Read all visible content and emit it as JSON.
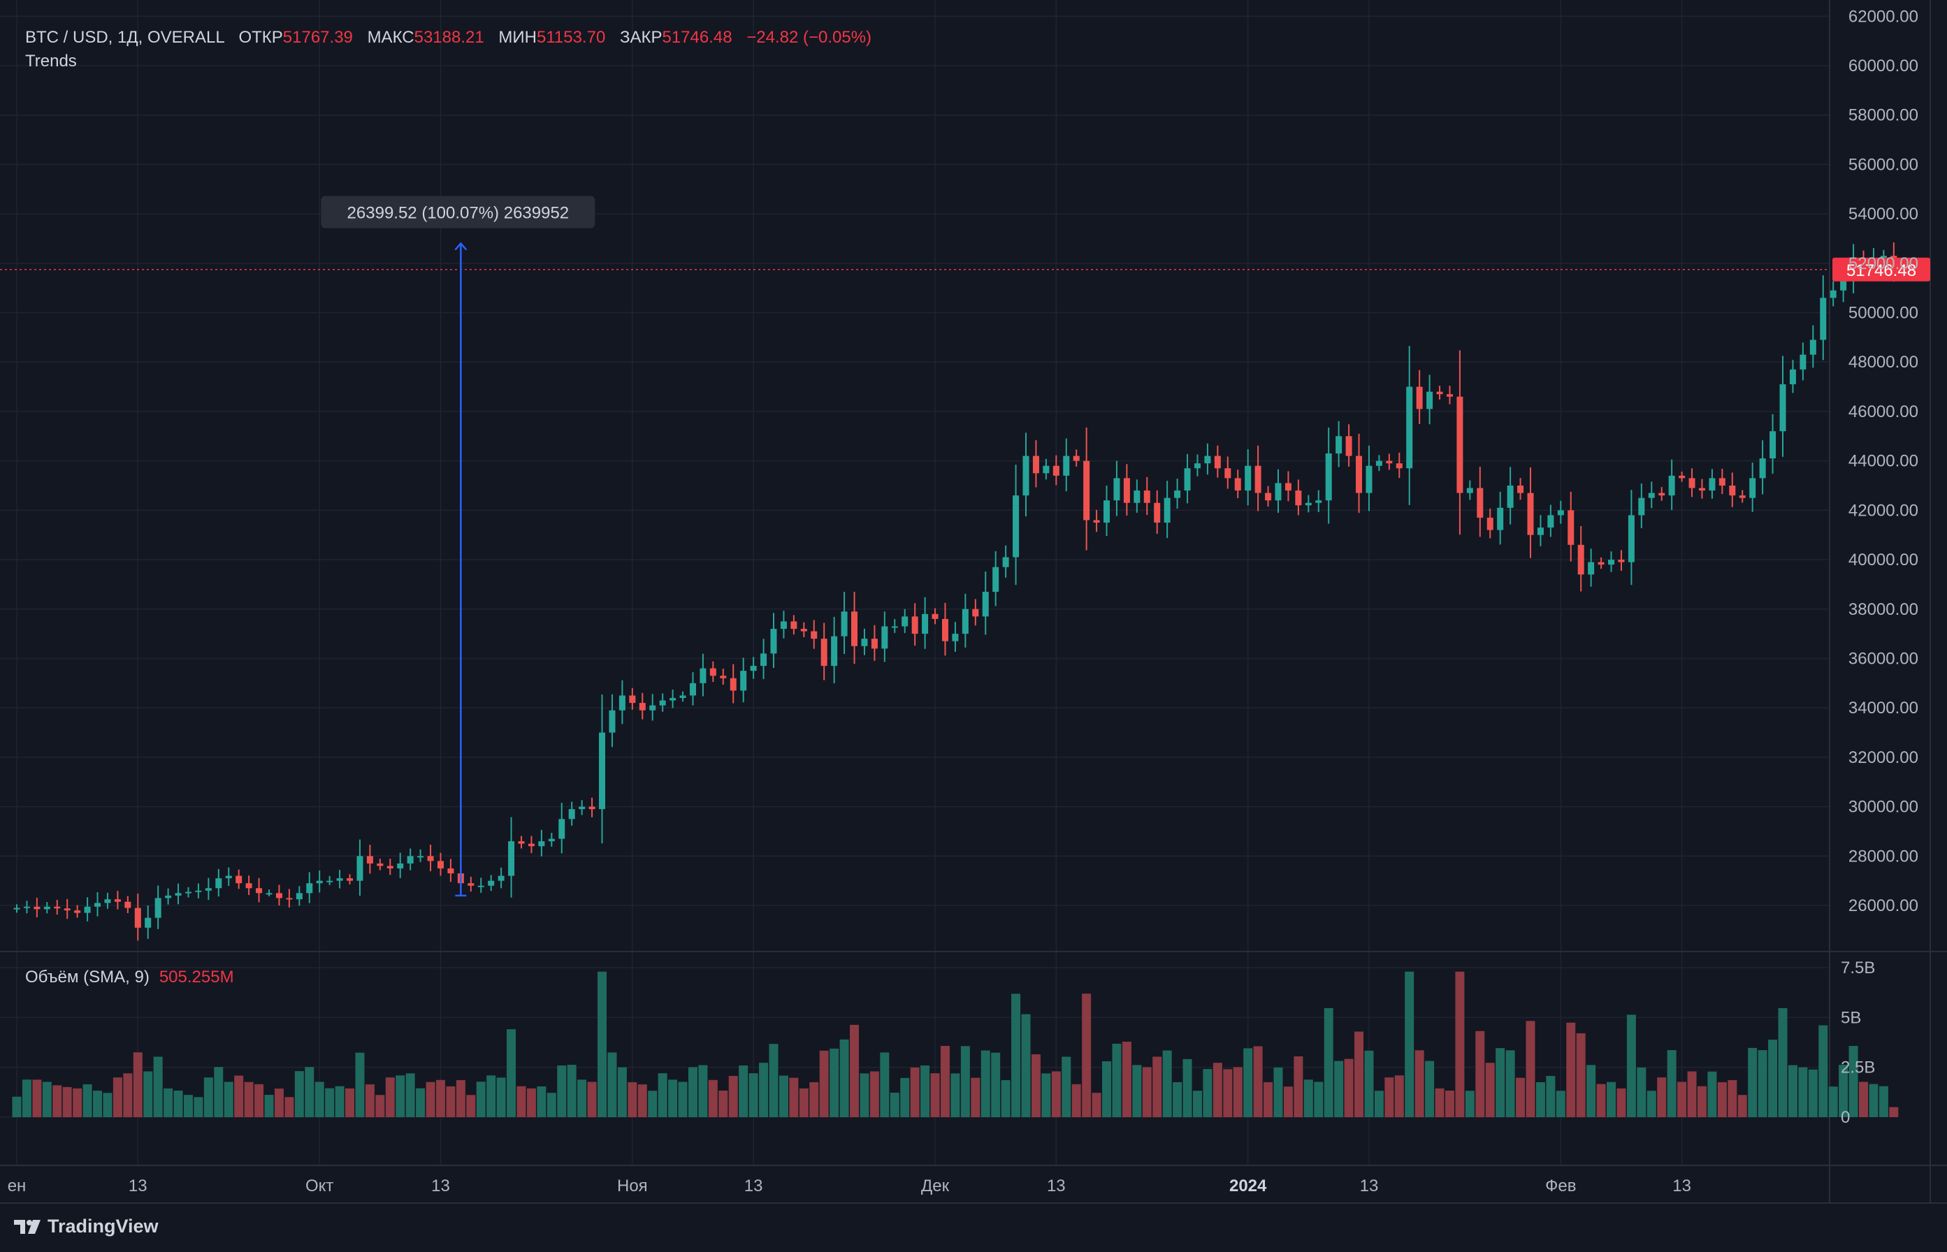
{
  "header": {
    "symbol": "BTC / USD, 1Д, OVERALL",
    "open_label": "ОТКР",
    "open_value": "51767.39",
    "high_label": "МАКС",
    "high_value": "53188.21",
    "low_label": "МИН",
    "low_value": "51153.70",
    "close_label": "ЗАКР",
    "close_value": "51746.48",
    "change": "−24.82 (−0.05%)",
    "indicator": "Trends"
  },
  "volume_legend": {
    "title": "Объём (SMA, 9)",
    "value": "505.255M"
  },
  "brand": "TradingView",
  "colors": {
    "background": "#131722",
    "up": "#26a69a",
    "down": "#ef5350",
    "volume_up": "#1f6b5f",
    "volume_down": "#8c3a43",
    "grid": "#1f2430",
    "text": "#b2b5be",
    "measure": "#2962ff",
    "last_price": "#f23645"
  },
  "chart_data": {
    "type": "candlestick",
    "ylim": [
      25000,
      62000
    ],
    "price_ticks": [
      "26000.00",
      "28000.00",
      "30000.00",
      "32000.00",
      "34000.00",
      "36000.00",
      "38000.00",
      "40000.00",
      "42000.00",
      "44000.00",
      "46000.00",
      "48000.00",
      "50000.00",
      "52000.00",
      "54000.00",
      "56000.00",
      "58000.00",
      "60000.00",
      "62000.00"
    ],
    "volume_ticks": [
      "0",
      "2.5B",
      "5B",
      "7.5B"
    ],
    "volume_ylim": [
      0,
      7.5
    ],
    "x_labels": [
      {
        "text": "ен",
        "x": 0
      },
      {
        "text": "13",
        "x": 12
      },
      {
        "text": "Окт",
        "x": 30
      },
      {
        "text": "13",
        "x": 42
      },
      {
        "text": "Ноя",
        "x": 61
      },
      {
        "text": "13",
        "x": 73
      },
      {
        "text": "Дек",
        "x": 91
      },
      {
        "text": "13",
        "x": 103
      },
      {
        "text": "2024",
        "x": 122
      },
      {
        "text": "13",
        "x": 134
      },
      {
        "text": "Фев",
        "x": 153
      },
      {
        "text": "13",
        "x": 165
      }
    ],
    "last_price": "51746.48",
    "last_price_value": 51746.48,
    "measurement": {
      "label": "26399.52 (100.07%) 2639952",
      "x": 44,
      "from": 26400,
      "to": 52800
    },
    "close": [
      25900,
      25950,
      25850,
      25950,
      25880,
      25800,
      25700,
      25950,
      26100,
      26250,
      26150,
      25900,
      25100,
      25500,
      26300,
      26400,
      26500,
      26550,
      26600,
      26700,
      27100,
      27200,
      26900,
      26700,
      26500,
      26500,
      26300,
      26250,
      26500,
      26900,
      27000,
      27000,
      27100,
      27000,
      28000,
      27700,
      27600,
      27500,
      27700,
      28000,
      28000,
      27800,
      27500,
      27300,
      26900,
      26800,
      26800,
      27000,
      27200,
      28600,
      28500,
      28400,
      28600,
      28700,
      29500,
      29900,
      30000,
      29900,
      33000,
      33900,
      34500,
      34200,
      33900,
      34100,
      34300,
      34400,
      34500,
      35000,
      35600,
      35300,
      35200,
      34700,
      35500,
      35700,
      36200,
      37200,
      37500,
      37200,
      37100,
      36800,
      35700,
      36900,
      37900,
      36500,
      36800,
      36400,
      37300,
      37300,
      37700,
      37000,
      37800,
      37600,
      36700,
      37000,
      38000,
      37700,
      38700,
      39700,
      40100,
      42600,
      44200,
      43500,
      43800,
      43400,
      44200,
      44000,
      41600,
      41500,
      42400,
      43300,
      42300,
      42800,
      42300,
      41500,
      42500,
      42800,
      43700,
      43900,
      44200,
      43700,
      43300,
      42800,
      43800,
      42700,
      42400,
      43100,
      42800,
      42200,
      42300,
      42400,
      44300,
      45000,
      44200,
      42700,
      43800,
      44000,
      43900,
      43700,
      47000,
      46100,
      46800,
      46700,
      46600,
      42700,
      42900,
      41700,
      41200,
      42100,
      43000,
      42700,
      41000,
      41300,
      41800,
      42000,
      40600,
      39400,
      39900,
      39800,
      40000,
      39900,
      41800,
      42500,
      42700,
      42600,
      43400,
      43300,
      42900,
      42800,
      43300,
      43000,
      42600,
      42500,
      43300,
      44100,
      45200,
      47100,
      47700,
      48300,
      48900,
      50600,
      50900,
      51300,
      52200,
      52100,
      52200,
      52300,
      51746
    ]
  }
}
